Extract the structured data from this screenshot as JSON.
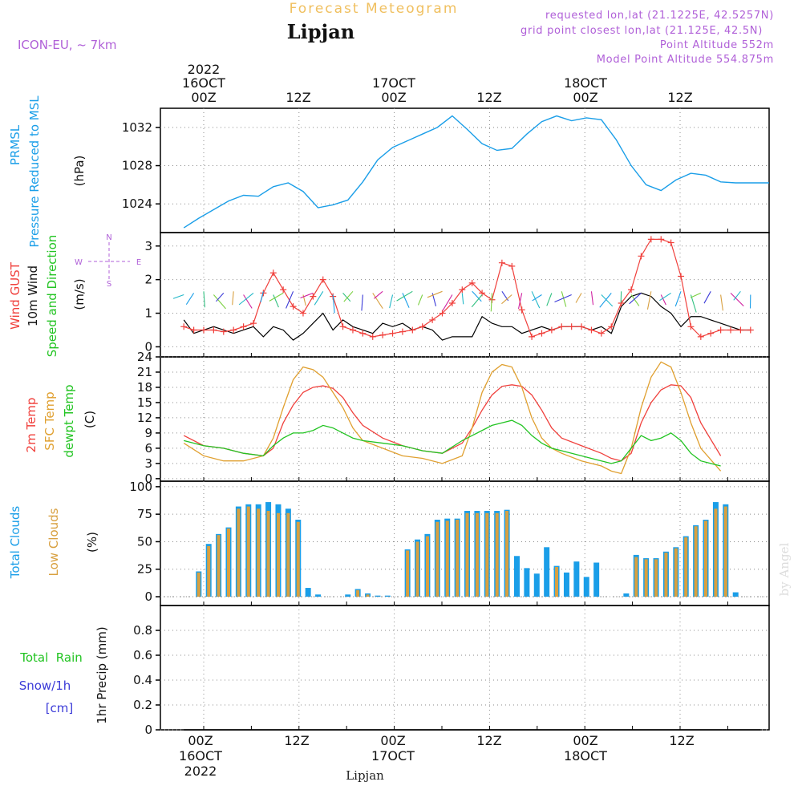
{
  "header": {
    "title": "Forecast Meteogram",
    "location": "Lipjan",
    "model": "ICON-EU, ~ 7km",
    "requested": "requested lon,lat (21.1225E, 42.5257N)",
    "gridpoint": "grid point closest lon,lat (21.125E, 42.5N)",
    "point_altitude": "Point Altitude 552m",
    "model_altitude": "Model Point Altitude 554.875m",
    "footer_location": "Lipjan",
    "credit": "by Angel"
  },
  "time_axis": {
    "top_year": "2022",
    "top_dates": [
      "16OCT",
      "17OCT",
      "18OCT"
    ],
    "hour_labels": [
      "00Z",
      "12Z",
      "00Z",
      "12Z",
      "00Z",
      "12Z"
    ],
    "bottom_year": "2022"
  },
  "colors": {
    "pressure": "#1a9ee8",
    "gust": "#f0403c",
    "wind": "#000000",
    "temp2m": "#f0403c",
    "sfctemp": "#e0a030",
    "dewpt": "#22c422",
    "totalcloud": "#1a9ee8",
    "lowcloud": "#d8a040",
    "rain": "#22c422",
    "snow": "#3b3bd8",
    "purple": "#b060d8",
    "title": "#f0c060"
  },
  "panels": {
    "pressure": {
      "labels": [
        "PRMSL",
        "Pressure Reduced to MSL"
      ],
      "unit": "(hPa)"
    },
    "wind": {
      "labels": [
        "Wind GUST",
        "10m Wind",
        "Speed and Direction"
      ],
      "unit": "(m/s)",
      "compass": {
        "n": "N",
        "s": "S",
        "w": "W",
        "e": "E"
      }
    },
    "temp": {
      "labels": [
        "2m Temp",
        "SFC Temp",
        "dewpt Temp"
      ],
      "unit": "(C)"
    },
    "cloud": {
      "labels": [
        "Total Clouds",
        "Low Clouds"
      ],
      "unit": "(%)"
    },
    "precip": {
      "labels": [
        "Total  Rain",
        "Snow/1h",
        "[cm]"
      ],
      "unit": "1hr Precip (mm)"
    }
  },
  "chart_data": [
    {
      "type": "line",
      "title": "",
      "ylabel": "(hPa)",
      "ylim": [
        1021,
        1034
      ],
      "yticks": [
        1024,
        1028,
        1032
      ],
      "series": [
        {
          "name": "PRMSL",
          "x": [
            -4,
            -1,
            2,
            5,
            8,
            11,
            14,
            17,
            20,
            23,
            26,
            29,
            32,
            35,
            38,
            41,
            44,
            47,
            50,
            53,
            56,
            59,
            62,
            65,
            68,
            71,
            74,
            77,
            80,
            83,
            86,
            89,
            92,
            95,
            98,
            101,
            104,
            107,
            110,
            113,
            116
          ],
          "values": [
            1021.5,
            1022.5,
            1023.4,
            1024.3,
            1024.9,
            1024.8,
            1025.8,
            1026.2,
            1025.3,
            1023.6,
            1023.9,
            1024.4,
            1026.3,
            1028.6,
            1029.9,
            1030.6,
            1031.3,
            1032.0,
            1033.2,
            1031.8,
            1030.3,
            1029.6,
            1029.8,
            1031.3,
            1032.6,
            1033.2,
            1032.7,
            1033.0,
            1032.8,
            1030.7,
            1028.0,
            1026.0,
            1025.4,
            1026.5,
            1027.2,
            1027.0,
            1026.3,
            1026.2,
            1026.2,
            1026.2,
            1026.2
          ]
        }
      ]
    },
    {
      "type": "line",
      "title": "",
      "ylabel": "(m/s)",
      "ylim": [
        -0.3,
        3.4
      ],
      "yticks": [
        0,
        1,
        2,
        3
      ],
      "series": [
        {
          "name": "Wind GUST",
          "x": [
            -4,
            -2,
            0,
            2,
            4,
            6,
            8,
            10,
            12,
            14,
            16,
            18,
            20,
            22,
            24,
            26,
            28,
            30,
            32,
            34,
            36,
            38,
            40,
            42,
            44,
            46,
            48,
            50,
            52,
            54,
            56,
            58,
            60,
            62,
            64,
            66,
            68,
            70,
            72,
            74,
            76,
            78,
            80,
            82,
            84,
            86,
            88,
            90,
            92,
            94,
            96,
            98,
            100,
            102,
            104,
            106,
            108,
            110
          ],
          "values": [
            0.6,
            0.5,
            0.5,
            0.5,
            0.45,
            0.5,
            0.6,
            0.7,
            1.6,
            2.2,
            1.7,
            1.2,
            1.0,
            1.5,
            2.0,
            1.5,
            0.6,
            0.5,
            0.4,
            0.3,
            0.35,
            0.4,
            0.45,
            0.5,
            0.6,
            0.8,
            1.0,
            1.3,
            1.7,
            1.9,
            1.6,
            1.4,
            2.5,
            2.4,
            1.1,
            0.3,
            0.4,
            0.5,
            0.6,
            0.6,
            0.6,
            0.5,
            0.4,
            0.6,
            1.3,
            1.7,
            2.7,
            3.2,
            3.2,
            3.1,
            2.1,
            0.6,
            0.3,
            0.4,
            0.5,
            0.5,
            0.5,
            0.5
          ]
        },
        {
          "name": "10m Wind",
          "x": [
            -4,
            -2,
            0,
            2,
            4,
            6,
            8,
            10,
            12,
            14,
            16,
            18,
            20,
            22,
            24,
            26,
            28,
            30,
            32,
            34,
            36,
            38,
            40,
            42,
            44,
            46,
            48,
            50,
            52,
            54,
            56,
            58,
            60,
            62,
            64,
            66,
            68,
            70,
            72,
            74,
            76,
            78,
            80,
            82,
            84,
            86,
            88,
            90,
            92,
            94,
            96,
            98,
            100,
            102,
            104,
            106,
            108,
            110
          ],
          "values": [
            0.8,
            0.4,
            0.5,
            0.6,
            0.5,
            0.4,
            0.5,
            0.6,
            0.3,
            0.6,
            0.5,
            0.2,
            0.4,
            0.7,
            1.0,
            0.5,
            0.8,
            0.6,
            0.5,
            0.4,
            0.7,
            0.6,
            0.7,
            0.5,
            0.6,
            0.5,
            0.2,
            0.3,
            0.3,
            0.3,
            0.9,
            0.7,
            0.6,
            0.6,
            0.4,
            0.5,
            0.6,
            0.5,
            0.6,
            0.6,
            0.6,
            0.5,
            0.6,
            0.4,
            1.2,
            1.5,
            1.6,
            1.5,
            1.2,
            1.0,
            0.6,
            0.9,
            0.9,
            0.8,
            0.7,
            0.6,
            0.5,
            0.5
          ]
        }
      ]
    },
    {
      "type": "line",
      "title": "",
      "ylabel": "(C)",
      "ylim": [
        -0.5,
        24
      ],
      "yticks": [
        0,
        3,
        6,
        9,
        12,
        15,
        18,
        21,
        24
      ],
      "series": [
        {
          "name": "2m Temp",
          "x": [
            -4,
            0,
            4,
            8,
            12,
            14,
            16,
            18,
            20,
            22,
            24,
            26,
            28,
            30,
            32,
            36,
            40,
            44,
            48,
            52,
            54,
            56,
            58,
            60,
            62,
            64,
            66,
            68,
            70,
            72,
            76,
            80,
            82,
            84,
            86,
            88,
            90,
            92,
            94,
            96,
            98,
            100,
            104
          ],
          "values": [
            8.5,
            6.5,
            6.0,
            5.0,
            4.5,
            6.0,
            11.0,
            14.5,
            17.0,
            18.0,
            18.3,
            17.8,
            16.0,
            13.0,
            10.5,
            8.0,
            6.5,
            5.5,
            5.0,
            7.0,
            10.0,
            13.5,
            16.5,
            18.2,
            18.5,
            18.2,
            16.5,
            13.5,
            10.0,
            8.0,
            6.5,
            5.0,
            4.0,
            3.5,
            5.0,
            11.0,
            15.0,
            17.5,
            18.5,
            18.3,
            16.0,
            11.0,
            4.5
          ]
        },
        {
          "name": "SFC Temp",
          "x": [
            -4,
            0,
            4,
            8,
            12,
            14,
            16,
            18,
            20,
            22,
            24,
            26,
            28,
            30,
            32,
            36,
            40,
            44,
            48,
            52,
            54,
            56,
            58,
            60,
            62,
            64,
            66,
            68,
            70,
            72,
            76,
            80,
            82,
            84,
            86,
            88,
            90,
            92,
            94,
            96,
            98,
            100,
            104
          ],
          "values": [
            7.0,
            4.5,
            3.5,
            3.5,
            4.5,
            8.0,
            14.0,
            19.5,
            22.0,
            21.5,
            20.0,
            17.0,
            14.0,
            10.0,
            7.5,
            6.0,
            4.5,
            4.0,
            3.0,
            4.5,
            10.0,
            17.0,
            21.0,
            22.5,
            22.0,
            18.0,
            12.0,
            8.0,
            6.0,
            5.0,
            3.5,
            2.5,
            1.5,
            1.0,
            6.0,
            14.0,
            20.0,
            23.0,
            22.0,
            17.0,
            11.0,
            6.0,
            1.5
          ]
        },
        {
          "name": "dewpt Temp",
          "x": [
            -4,
            0,
            4,
            8,
            12,
            14,
            16,
            18,
            20,
            22,
            24,
            26,
            28,
            30,
            32,
            36,
            40,
            44,
            48,
            52,
            54,
            56,
            58,
            60,
            62,
            64,
            66,
            68,
            70,
            72,
            76,
            80,
            82,
            84,
            86,
            88,
            90,
            92,
            94,
            96,
            98,
            100,
            104
          ],
          "values": [
            7.5,
            6.5,
            6.0,
            5.0,
            4.5,
            6.5,
            8.0,
            9.0,
            9.0,
            9.5,
            10.5,
            10.0,
            9.0,
            8.0,
            7.5,
            7.0,
            6.5,
            5.5,
            5.0,
            7.5,
            8.5,
            9.5,
            10.5,
            11.0,
            11.5,
            10.5,
            8.5,
            7.0,
            6.0,
            5.5,
            4.5,
            3.5,
            3.0,
            3.5,
            6.0,
            8.5,
            7.5,
            8.0,
            9.0,
            7.5,
            5.0,
            3.5,
            2.5
          ]
        }
      ]
    },
    {
      "type": "bar",
      "title": "",
      "ylabel": "(%)",
      "ylim": [
        -8,
        105
      ],
      "yticks": [
        0,
        25,
        50,
        75,
        100
      ],
      "x": [
        -3,
        -1,
        1,
        3,
        5,
        7,
        9,
        11,
        13,
        15,
        17,
        19,
        21,
        23,
        25,
        27,
        29,
        31,
        33,
        35,
        37,
        39,
        41,
        43,
        45,
        47,
        49,
        51,
        53,
        55,
        57,
        59,
        61,
        63,
        65,
        67,
        69,
        71,
        73,
        75,
        77,
        79,
        81,
        83,
        85,
        87,
        89,
        91,
        93,
        95,
        97,
        99,
        101,
        103,
        105,
        107,
        109,
        111
      ],
      "series": [
        {
          "name": "Total Clouds",
          "values": [
            0,
            23,
            48,
            57,
            63,
            82,
            84,
            84,
            86,
            84,
            80,
            70,
            8,
            2,
            0,
            0,
            2,
            7,
            3,
            1,
            1,
            0,
            43,
            52,
            57,
            70,
            71,
            71,
            78,
            78,
            78,
            78,
            79,
            37,
            26,
            21,
            45,
            28,
            22,
            32,
            18,
            31,
            0,
            0,
            3,
            38,
            35,
            35,
            41,
            45,
            55,
            65,
            70,
            86,
            84,
            4,
            0,
            0
          ]
        },
        {
          "name": "Low Clouds",
          "values": [
            0,
            22,
            46,
            56,
            62,
            80,
            82,
            80,
            78,
            76,
            76,
            68,
            0,
            0,
            0,
            0,
            0,
            6,
            2,
            0,
            0,
            0,
            42,
            50,
            55,
            68,
            69,
            70,
            76,
            76,
            76,
            76,
            78,
            0,
            0,
            0,
            0,
            27,
            0,
            0,
            0,
            0,
            0,
            0,
            0,
            36,
            34,
            34,
            40,
            44,
            54,
            64,
            69,
            80,
            82,
            0,
            0,
            0
          ]
        }
      ]
    },
    {
      "type": "line",
      "title": "",
      "ylabel": "1hr Precip (mm)",
      "ylim": [
        0,
        1.0
      ],
      "yticks": [
        0,
        0.2,
        0.4,
        0.6,
        0.8
      ],
      "series": [
        {
          "name": "Total Rain",
          "x": [
            -4,
            112
          ],
          "values": [
            0,
            0
          ]
        }
      ]
    }
  ]
}
